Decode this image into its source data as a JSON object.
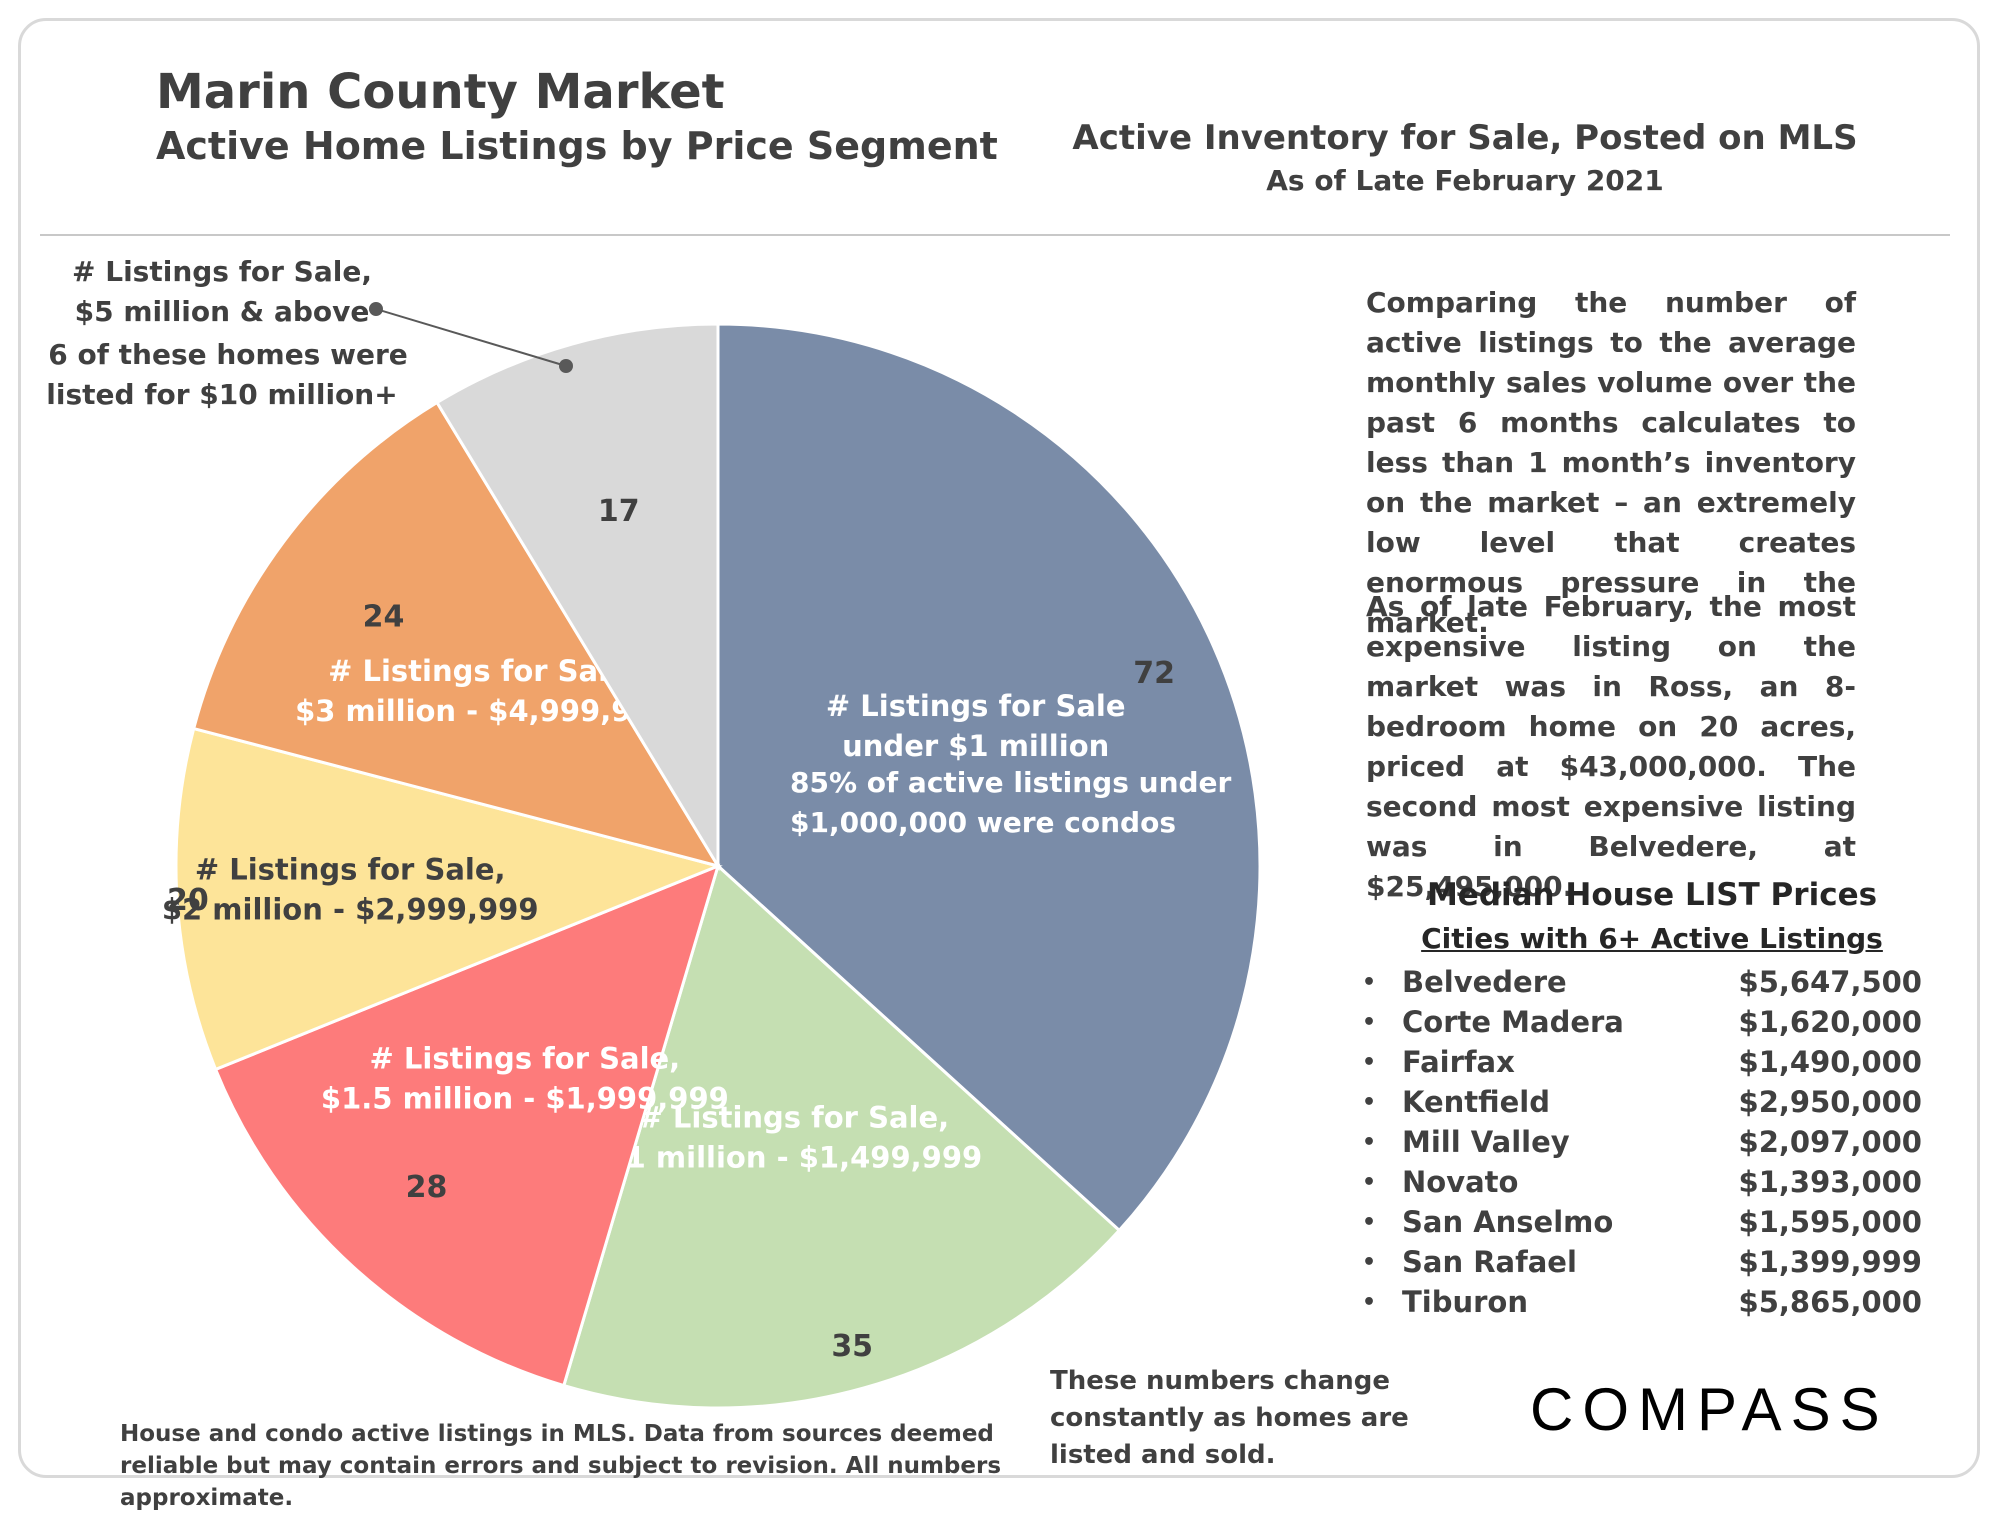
{
  "header": {
    "title": "Marin County Market",
    "subtitle": "Active Home Listings by Price Segment",
    "inventory_title": "Active Inventory for Sale, Posted on MLS",
    "inventory_subtitle": "As of Late February 2021"
  },
  "chart_data": {
    "type": "pie",
    "title": "",
    "categories": [
      "# Listings for Sale under $1 million",
      "# Listings for Sale, $1 million - $1,499,999",
      "# Listings for Sale, $1.5 million - $1,999,999",
      "# Listings for Sale, $2 million - $2,999,999",
      "# Listings for Sale, $3 million - $4,999,999",
      "# Listings for Sale, $5 million & above"
    ],
    "values": [
      72,
      35,
      28,
      20,
      24,
      17
    ],
    "value_labels": [
      "72",
      "35",
      "28",
      "20",
      "24",
      "17"
    ],
    "slice_labels": [
      [
        "# Listings for Sale",
        "under $1 million"
      ],
      [
        "# Listings for Sale,",
        "$1 million - $1,499,999"
      ],
      [
        "# Listings for Sale,",
        "$1.5 million - $1,999,999"
      ],
      [
        "# Listings for Sale,",
        "$2 million - $2,999,999"
      ],
      [
        "# Listings for Sale,",
        "$3 million - $4,999,999"
      ],
      []
    ],
    "colors": [
      "#7a8ca8",
      "#c5dfb2",
      "#fd7b7b",
      "#fde499",
      "#f0a36a",
      "#d9d9d9"
    ],
    "annotations": {
      "under_1m_note": [
        "85% of active listings under",
        "$1,000,000 were condos"
      ],
      "callout_5m": [
        "# Listings for Sale,",
        "$5 million & above",
        "6 of these homes were",
        "listed for $10 million+"
      ]
    }
  },
  "commentary": {
    "paragraph1": "Comparing the number of active listings to the average monthly sales volume over the past 6 months calculates to less than 1 month’s inventory on the market – an extremely low level that creates enormous pressure in the market.",
    "paragraph2": "As of late February, the most expensive listing on the market was in Ross, an 8-bedroom home on 20 acres, priced at $43,000,000. The second most expensive listing was in Belvedere, at $25,495,000."
  },
  "median_prices": {
    "title": "Median House LIST Prices",
    "subtitle": "Cities with 6+ Active Listings",
    "bullet": "•",
    "cities": [
      {
        "name": "Belvedere",
        "price": "$5,647,500"
      },
      {
        "name": "Corte Madera",
        "price": "$1,620,000"
      },
      {
        "name": "Fairfax",
        "price": "$1,490,000"
      },
      {
        "name": "Kentfield",
        "price": "$2,950,000"
      },
      {
        "name": "Mill Valley",
        "price": "$2,097,000"
      },
      {
        "name": "Novato",
        "price": "$1,393,000"
      },
      {
        "name": "San Anselmo",
        "price": "$1,595,000"
      },
      {
        "name": "San Rafael",
        "price": "$1,399,999"
      },
      {
        "name": "Tiburon",
        "price": "$5,865,000"
      }
    ]
  },
  "footer": {
    "changing_note": "These numbers change constantly as homes are listed and sold.",
    "disclaimer": "House and condo active listings in MLS. Data from sources deemed reliable but may contain errors and subject to revision. All numbers approximate.",
    "logo_text": "COMPASS"
  }
}
